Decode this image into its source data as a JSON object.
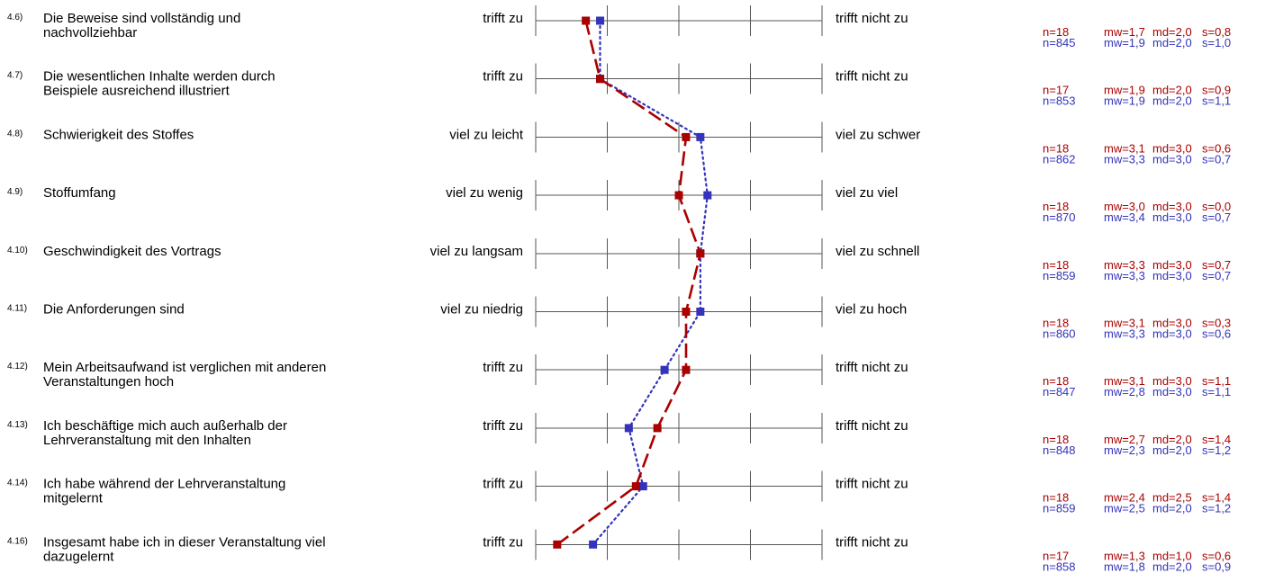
{
  "colors": {
    "course": "#aa0000",
    "reference": "#3333bb",
    "grid": "#555555"
  },
  "chart_data": {
    "type": "line",
    "scale_min": 1,
    "scale_max": 5,
    "orientation": "horizontal profile (x = rating, one row per item)",
    "series": [
      {
        "style": "dashed",
        "color": "#aa0000",
        "values": [
          1.7,
          1.9,
          3.1,
          3.0,
          3.3,
          3.1,
          3.1,
          2.7,
          2.4,
          1.3
        ]
      },
      {
        "style": "dotted",
        "color": "#3333bb",
        "values": [
          1.9,
          1.9,
          3.3,
          3.4,
          3.3,
          3.3,
          2.8,
          2.3,
          2.5,
          1.8
        ]
      }
    ],
    "items": [
      {
        "num": "4.6)",
        "text": [
          "Die Beweise sind vollständig und",
          "nachvollziehbar"
        ],
        "left": "trifft zu",
        "right": "trifft nicht zu",
        "stat1": {
          "n": "n=18",
          "mw": "mw=1,7",
          "md": "md=2,0",
          "s": "s=0,8"
        },
        "stat2": {
          "n": "n=845",
          "mw": "mw=1,9",
          "md": "md=2,0",
          "s": "s=1,0"
        }
      },
      {
        "num": "4.7)",
        "text": [
          "Die wesentlichen Inhalte werden durch",
          "Beispiele ausreichend illustriert"
        ],
        "left": "trifft zu",
        "right": "trifft nicht zu",
        "stat1": {
          "n": "n=17",
          "mw": "mw=1,9",
          "md": "md=2,0",
          "s": "s=0,9"
        },
        "stat2": {
          "n": "n=853",
          "mw": "mw=1,9",
          "md": "md=2,0",
          "s": "s=1,1"
        }
      },
      {
        "num": "4.8)",
        "text": [
          "Schwierigkeit des Stoffes"
        ],
        "left": "viel zu leicht",
        "right": "viel zu schwer",
        "stat1": {
          "n": "n=18",
          "mw": "mw=3,1",
          "md": "md=3,0",
          "s": "s=0,6"
        },
        "stat2": {
          "n": "n=862",
          "mw": "mw=3,3",
          "md": "md=3,0",
          "s": "s=0,7"
        }
      },
      {
        "num": "4.9)",
        "text": [
          "Stoffumfang"
        ],
        "left": "viel zu wenig",
        "right": "viel zu viel",
        "stat1": {
          "n": "n=18",
          "mw": "mw=3,0",
          "md": "md=3,0",
          "s": "s=0,0"
        },
        "stat2": {
          "n": "n=870",
          "mw": "mw=3,4",
          "md": "md=3,0",
          "s": "s=0,7"
        }
      },
      {
        "num": "4.10)",
        "text": [
          "Geschwindigkeit des Vortrags"
        ],
        "left": "viel zu langsam",
        "right": "viel zu schnell",
        "stat1": {
          "n": "n=18",
          "mw": "mw=3,3",
          "md": "md=3,0",
          "s": "s=0,7"
        },
        "stat2": {
          "n": "n=859",
          "mw": "mw=3,3",
          "md": "md=3,0",
          "s": "s=0,7"
        }
      },
      {
        "num": "4.11)",
        "text": [
          "Die Anforderungen sind"
        ],
        "left": "viel zu niedrig",
        "right": "viel zu hoch",
        "stat1": {
          "n": "n=18",
          "mw": "mw=3,1",
          "md": "md=3,0",
          "s": "s=0,3"
        },
        "stat2": {
          "n": "n=860",
          "mw": "mw=3,3",
          "md": "md=3,0",
          "s": "s=0,6"
        }
      },
      {
        "num": "4.12)",
        "text": [
          "Mein Arbeitsaufwand ist verglichen mit anderen",
          "Veranstaltungen hoch"
        ],
        "left": "trifft zu",
        "right": "trifft nicht zu",
        "stat1": {
          "n": "n=18",
          "mw": "mw=3,1",
          "md": "md=3,0",
          "s": "s=1,1"
        },
        "stat2": {
          "n": "n=847",
          "mw": "mw=2,8",
          "md": "md=3,0",
          "s": "s=1,1"
        }
      },
      {
        "num": "4.13)",
        "text": [
          "Ich beschäftige mich auch außerhalb der",
          "Lehrveranstaltung mit den Inhalten"
        ],
        "left": "trifft zu",
        "right": "trifft nicht zu",
        "stat1": {
          "n": "n=18",
          "mw": "mw=2,7",
          "md": "md=2,0",
          "s": "s=1,4"
        },
        "stat2": {
          "n": "n=848",
          "mw": "mw=2,3",
          "md": "md=2,0",
          "s": "s=1,2"
        }
      },
      {
        "num": "4.14)",
        "text": [
          "Ich habe während der Lehrveranstaltung",
          "mitgelernt"
        ],
        "left": "trifft zu",
        "right": "trifft nicht zu",
        "stat1": {
          "n": "n=18",
          "mw": "mw=2,4",
          "md": "md=2,5",
          "s": "s=1,4"
        },
        "stat2": {
          "n": "n=859",
          "mw": "mw=2,5",
          "md": "md=2,0",
          "s": "s=1,2"
        }
      },
      {
        "num": "4.16)",
        "text": [
          "Insgesamt habe ich in dieser Veranstaltung viel",
          "dazugelernt"
        ],
        "left": "trifft zu",
        "right": "trifft nicht zu",
        "stat1": {
          "n": "n=17",
          "mw": "mw=1,3",
          "md": "md=1,0",
          "s": "s=0,6"
        },
        "stat2": {
          "n": "n=858",
          "mw": "mw=1,8",
          "md": "md=2,0",
          "s": "s=0,9"
        }
      }
    ]
  }
}
